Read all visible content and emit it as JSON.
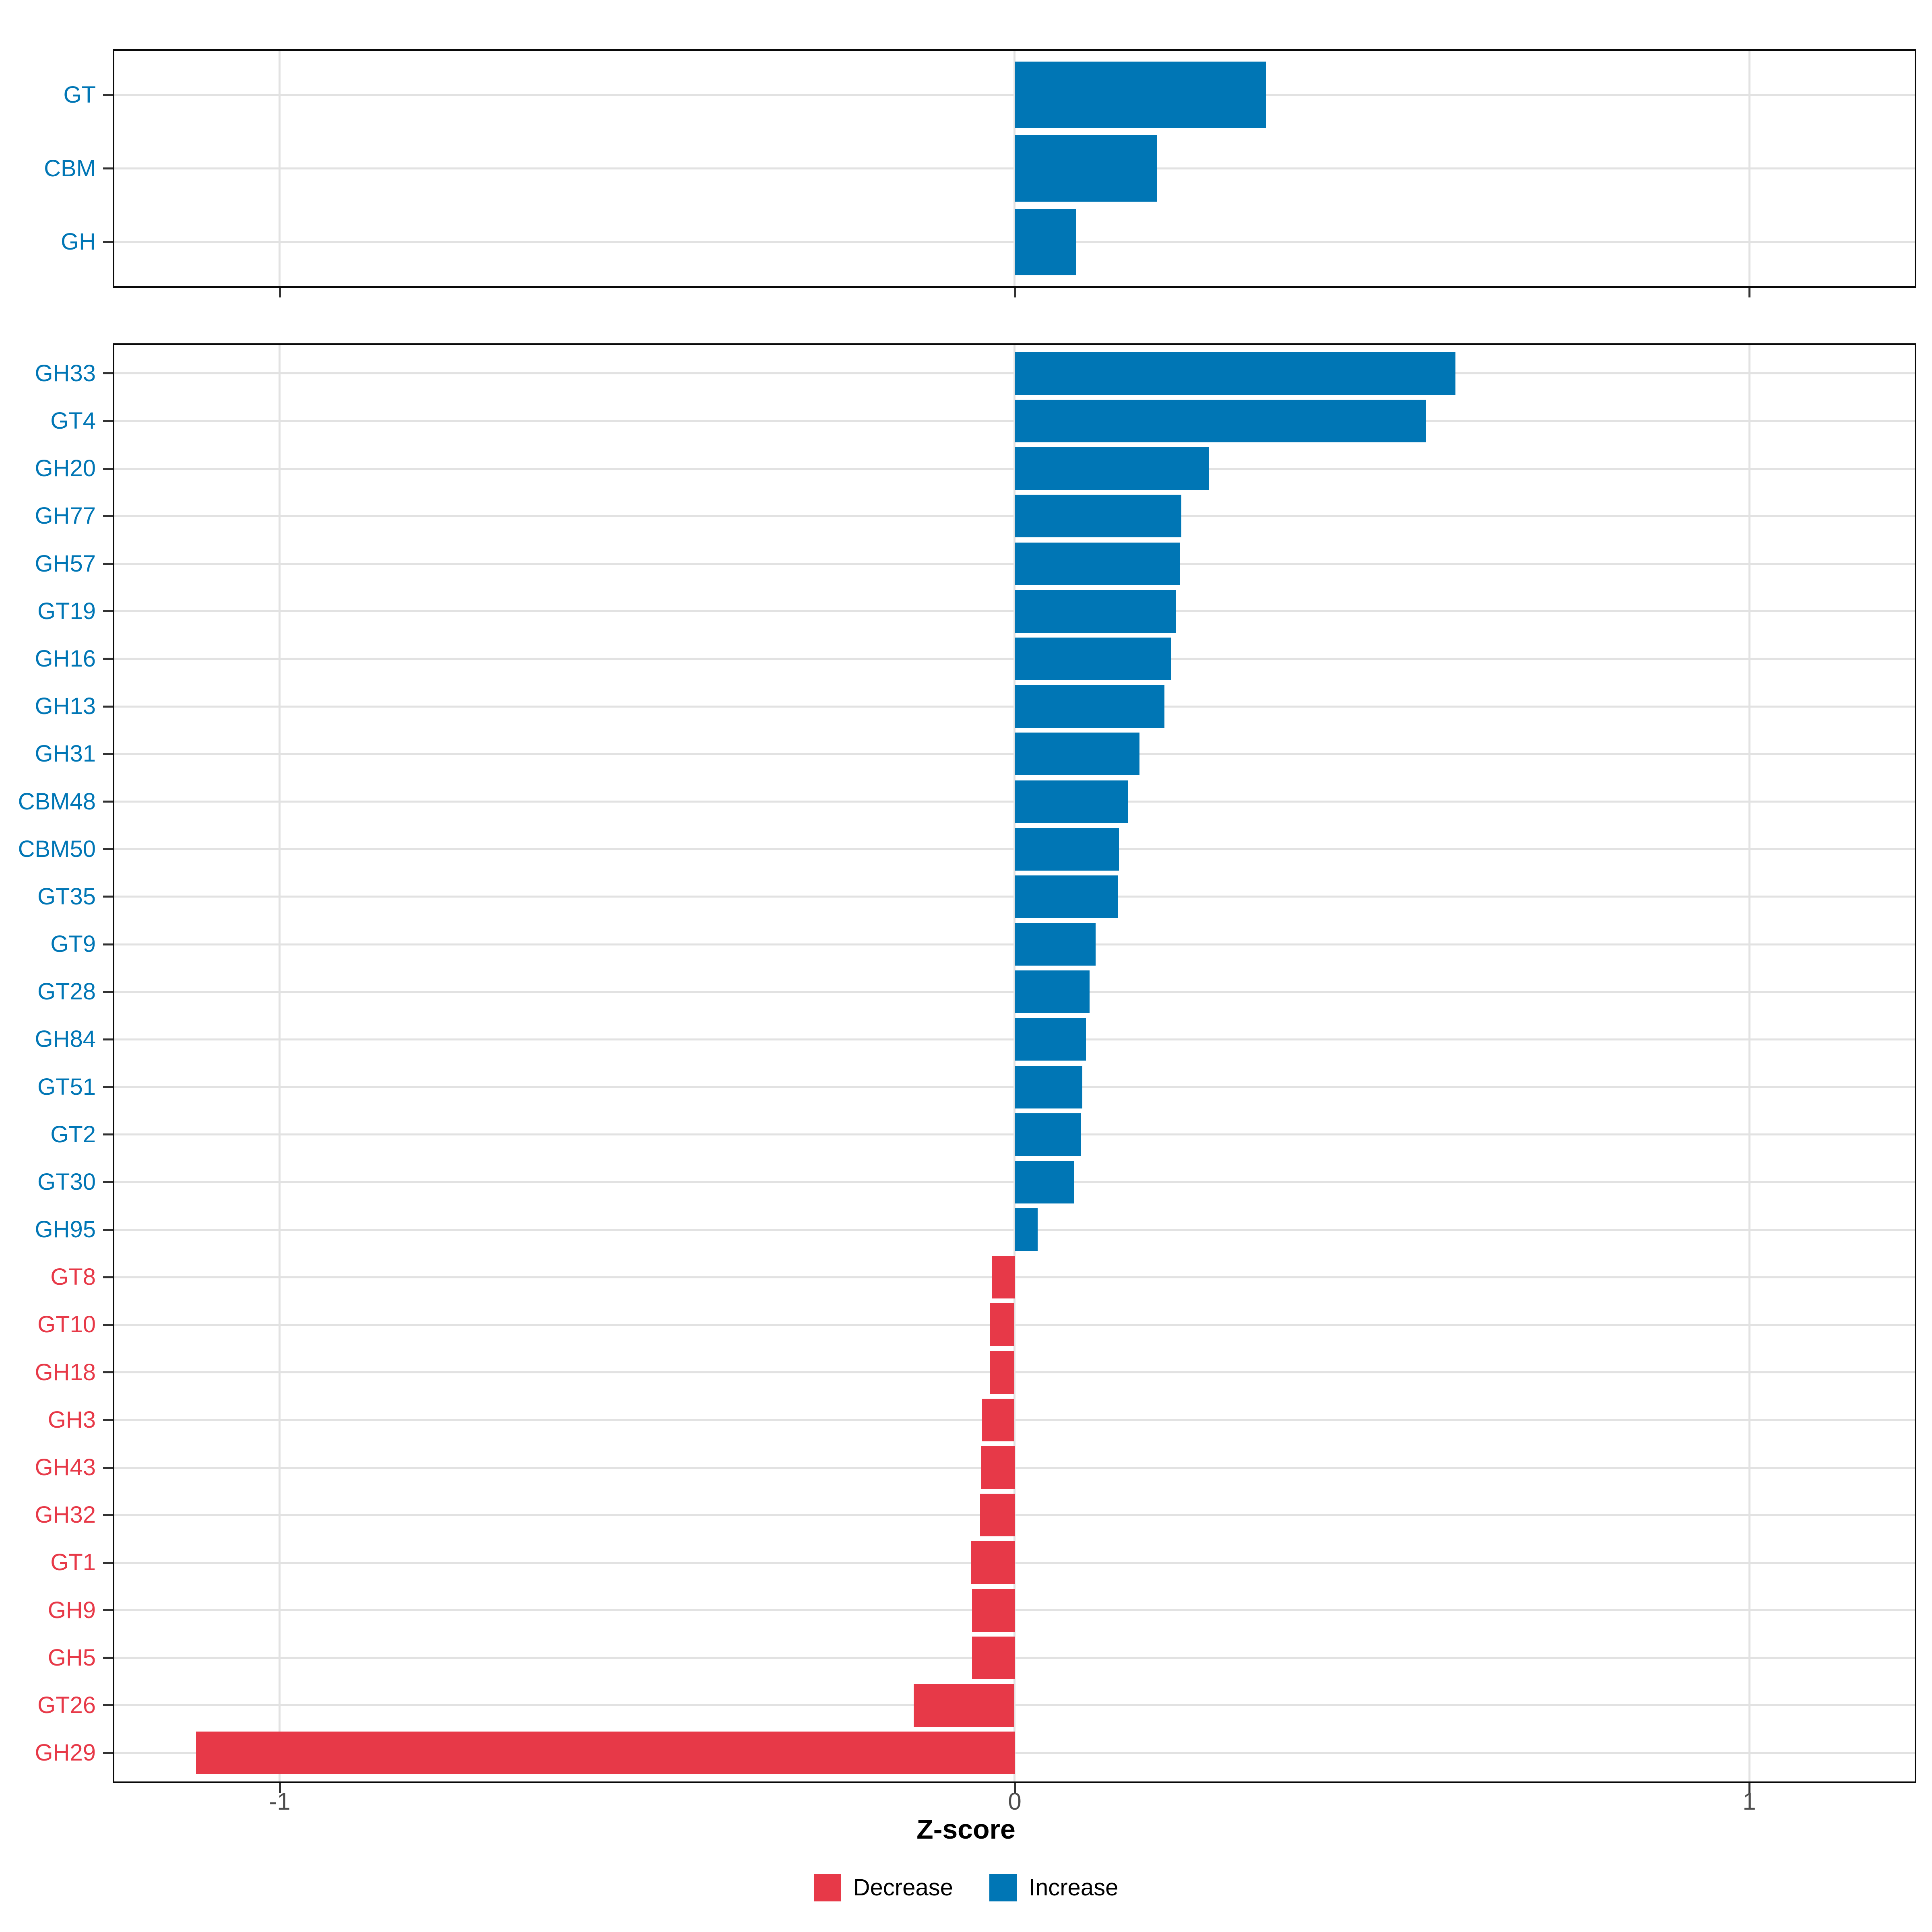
{
  "chart_data": {
    "type": "bar",
    "orientation": "horizontal",
    "title": "",
    "xlabel": "Z-score",
    "ylabel": "",
    "xlim": [
      -1.225,
      1.225
    ],
    "x_ticks": [
      {
        "label": "-1",
        "value": -1
      },
      {
        "label": "0",
        "value": 0
      },
      {
        "label": "1",
        "value": 1
      }
    ],
    "grid": "major-x-and-category-rows",
    "legend_position": "bottom",
    "legend": [
      {
        "label": "Decrease",
        "key": "decrease"
      },
      {
        "label": "Increase",
        "key": "increase"
      }
    ],
    "colors": {
      "increase": "#0076B5",
      "decrease": "#E73948",
      "grid": "#E2E2E2",
      "axis_text": "#4D4D4D",
      "axis_title": "#000000",
      "tick": "#333333",
      "panel_border": "#0A0A0A",
      "background": "#FFFFFF"
    },
    "panels": [
      {
        "name": "categories-summary",
        "bars": [
          {
            "label": "GT",
            "value": 0.342,
            "direction": "increase"
          },
          {
            "label": "CBM",
            "value": 0.194,
            "direction": "increase"
          },
          {
            "label": "GH",
            "value": 0.084,
            "direction": "increase"
          }
        ]
      },
      {
        "name": "families-detail",
        "bars": [
          {
            "label": "GH33",
            "value": 0.6,
            "direction": "increase"
          },
          {
            "label": "GT4",
            "value": 0.56,
            "direction": "increase"
          },
          {
            "label": "GH20",
            "value": 0.264,
            "direction": "increase"
          },
          {
            "label": "GH77",
            "value": 0.227,
            "direction": "increase"
          },
          {
            "label": "GH57",
            "value": 0.225,
            "direction": "increase"
          },
          {
            "label": "GT19",
            "value": 0.219,
            "direction": "increase"
          },
          {
            "label": "GH16",
            "value": 0.213,
            "direction": "increase"
          },
          {
            "label": "GH13",
            "value": 0.204,
            "direction": "increase"
          },
          {
            "label": "GH31",
            "value": 0.17,
            "direction": "increase"
          },
          {
            "label": "CBM48",
            "value": 0.154,
            "direction": "increase"
          },
          {
            "label": "CBM50",
            "value": 0.142,
            "direction": "increase"
          },
          {
            "label": "GT35",
            "value": 0.141,
            "direction": "increase"
          },
          {
            "label": "GT9",
            "value": 0.11,
            "direction": "increase"
          },
          {
            "label": "GT28",
            "value": 0.102,
            "direction": "increase"
          },
          {
            "label": "GH84",
            "value": 0.097,
            "direction": "increase"
          },
          {
            "label": "GT51",
            "value": 0.092,
            "direction": "increase"
          },
          {
            "label": "GT2",
            "value": 0.09,
            "direction": "increase"
          },
          {
            "label": "GT30",
            "value": 0.081,
            "direction": "increase"
          },
          {
            "label": "GH95",
            "value": 0.031,
            "direction": "increase"
          },
          {
            "label": "GT8",
            "value": -0.031,
            "direction": "decrease"
          },
          {
            "label": "GT10",
            "value": -0.033,
            "direction": "decrease"
          },
          {
            "label": "GH18",
            "value": -0.033,
            "direction": "decrease"
          },
          {
            "label": "GH3",
            "value": -0.044,
            "direction": "decrease"
          },
          {
            "label": "GH43",
            "value": -0.046,
            "direction": "decrease"
          },
          {
            "label": "GH32",
            "value": -0.047,
            "direction": "decrease"
          },
          {
            "label": "GT1",
            "value": -0.059,
            "direction": "decrease"
          },
          {
            "label": "GH9",
            "value": -0.058,
            "direction": "decrease"
          },
          {
            "label": "GH5",
            "value": -0.058,
            "direction": "decrease"
          },
          {
            "label": "GT26",
            "value": -0.137,
            "direction": "decrease"
          },
          {
            "label": "GH29",
            "value": -1.114,
            "direction": "decrease"
          }
        ]
      }
    ]
  }
}
